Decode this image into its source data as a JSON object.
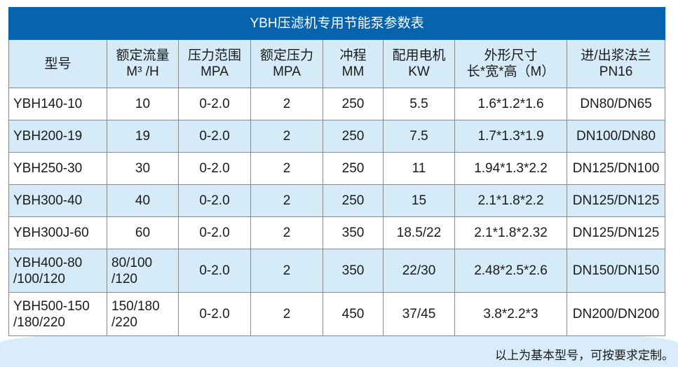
{
  "title": "YBH压滤机专用节能泵参数表",
  "headers": [
    {
      "l1": "型号",
      "l2": ""
    },
    {
      "l1": "额定流量",
      "l2": "M³ /H"
    },
    {
      "l1": "压力范围",
      "l2": "MPA"
    },
    {
      "l1": "额定压力",
      "l2": "MPA"
    },
    {
      "l1": "冲程",
      "l2": "MM"
    },
    {
      "l1": "配用电机",
      "l2": "KW"
    },
    {
      "l1": "外形尺寸",
      "l2": "长*宽*高（M）"
    },
    {
      "l1": "进/出浆法兰",
      "l2": "PN16"
    }
  ],
  "rows": [
    {
      "model": [
        "YBH140-10"
      ],
      "flow": [
        "10"
      ],
      "range": "0-2.0",
      "pressure": "2",
      "stroke": "250",
      "motor": "5.5",
      "size": "1.6*1.2*1.6",
      "flange": "DN80/DN65"
    },
    {
      "model": [
        "YBH200-19"
      ],
      "flow": [
        "19"
      ],
      "range": "0-2.0",
      "pressure": "2",
      "stroke": "250",
      "motor": "7.5",
      "size": "1.7*1.3*1.9",
      "flange": "DN100/DN80"
    },
    {
      "model": [
        "YBH250-30"
      ],
      "flow": [
        "30"
      ],
      "range": "0-2.0",
      "pressure": "2",
      "stroke": "250",
      "motor": "11",
      "size": "1.94*1.3*2.2",
      "flange": "DN125/DN100"
    },
    {
      "model": [
        "YBH300-40"
      ],
      "flow": [
        "40"
      ],
      "range": "0-2.0",
      "pressure": "2",
      "stroke": "250",
      "motor": "15",
      "size": "2.1*1.8*2.2",
      "flange": "DN125/DN125"
    },
    {
      "model": [
        "YBH300J-60"
      ],
      "flow": [
        "60"
      ],
      "range": "0-2.0",
      "pressure": "2",
      "stroke": "350",
      "motor": "18.5/22",
      "size": "2.1*1.8*2.32",
      "flange": "DN125/DN125"
    },
    {
      "model": [
        "YBH400-80",
        "/100/120"
      ],
      "flow": [
        "80/100",
        "/120"
      ],
      "range": "0-2.0",
      "pressure": "2",
      "stroke": "350",
      "motor": "22/30",
      "size": "2.48*2.5*2.6",
      "flange": "DN150/DN150"
    },
    {
      "model": [
        "YBH500-150",
        "/180/220"
      ],
      "flow": [
        "150/180",
        "/220"
      ],
      "range": "0-2.0",
      "pressure": "2",
      "stroke": "450",
      "motor": "37/45",
      "size": "3.8*2.2*3",
      "flange": "DN200/DN200"
    }
  ],
  "note": "以上为基本型号，可按要求定制。",
  "colors": {
    "title_bg": "#0863ad",
    "header_bg": "#d6ebf8",
    "alt_row_bg": "#d6ebf8"
  }
}
